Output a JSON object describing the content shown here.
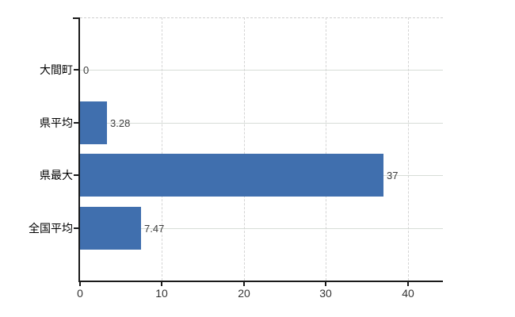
{
  "chart_data": {
    "type": "bar",
    "orientation": "horizontal",
    "title": "",
    "xlabel": "",
    "ylabel": "",
    "categories": [
      "大間町",
      "県平均",
      "県最大",
      "全国平均"
    ],
    "values": [
      0,
      3.28,
      37,
      7.47
    ],
    "value_labels": [
      "0",
      "3.28",
      "37",
      "7.47"
    ],
    "x_ticks": [
      0,
      10,
      20,
      30,
      40
    ],
    "x_tick_labels": [
      "0",
      "10",
      "20",
      "30",
      "40"
    ],
    "xlim": [
      0,
      44.3
    ],
    "grid": true,
    "legend": false,
    "colors": {
      "bar": "#406fae",
      "axis": "#1a1a1a",
      "grid_horizontal": "#d7ddd7",
      "grid_vertical": "#d4d4d4",
      "category_label": "#000000",
      "value_label": "#3d3d3d",
      "tick_label": "#333333",
      "background": "#ffffff"
    }
  }
}
